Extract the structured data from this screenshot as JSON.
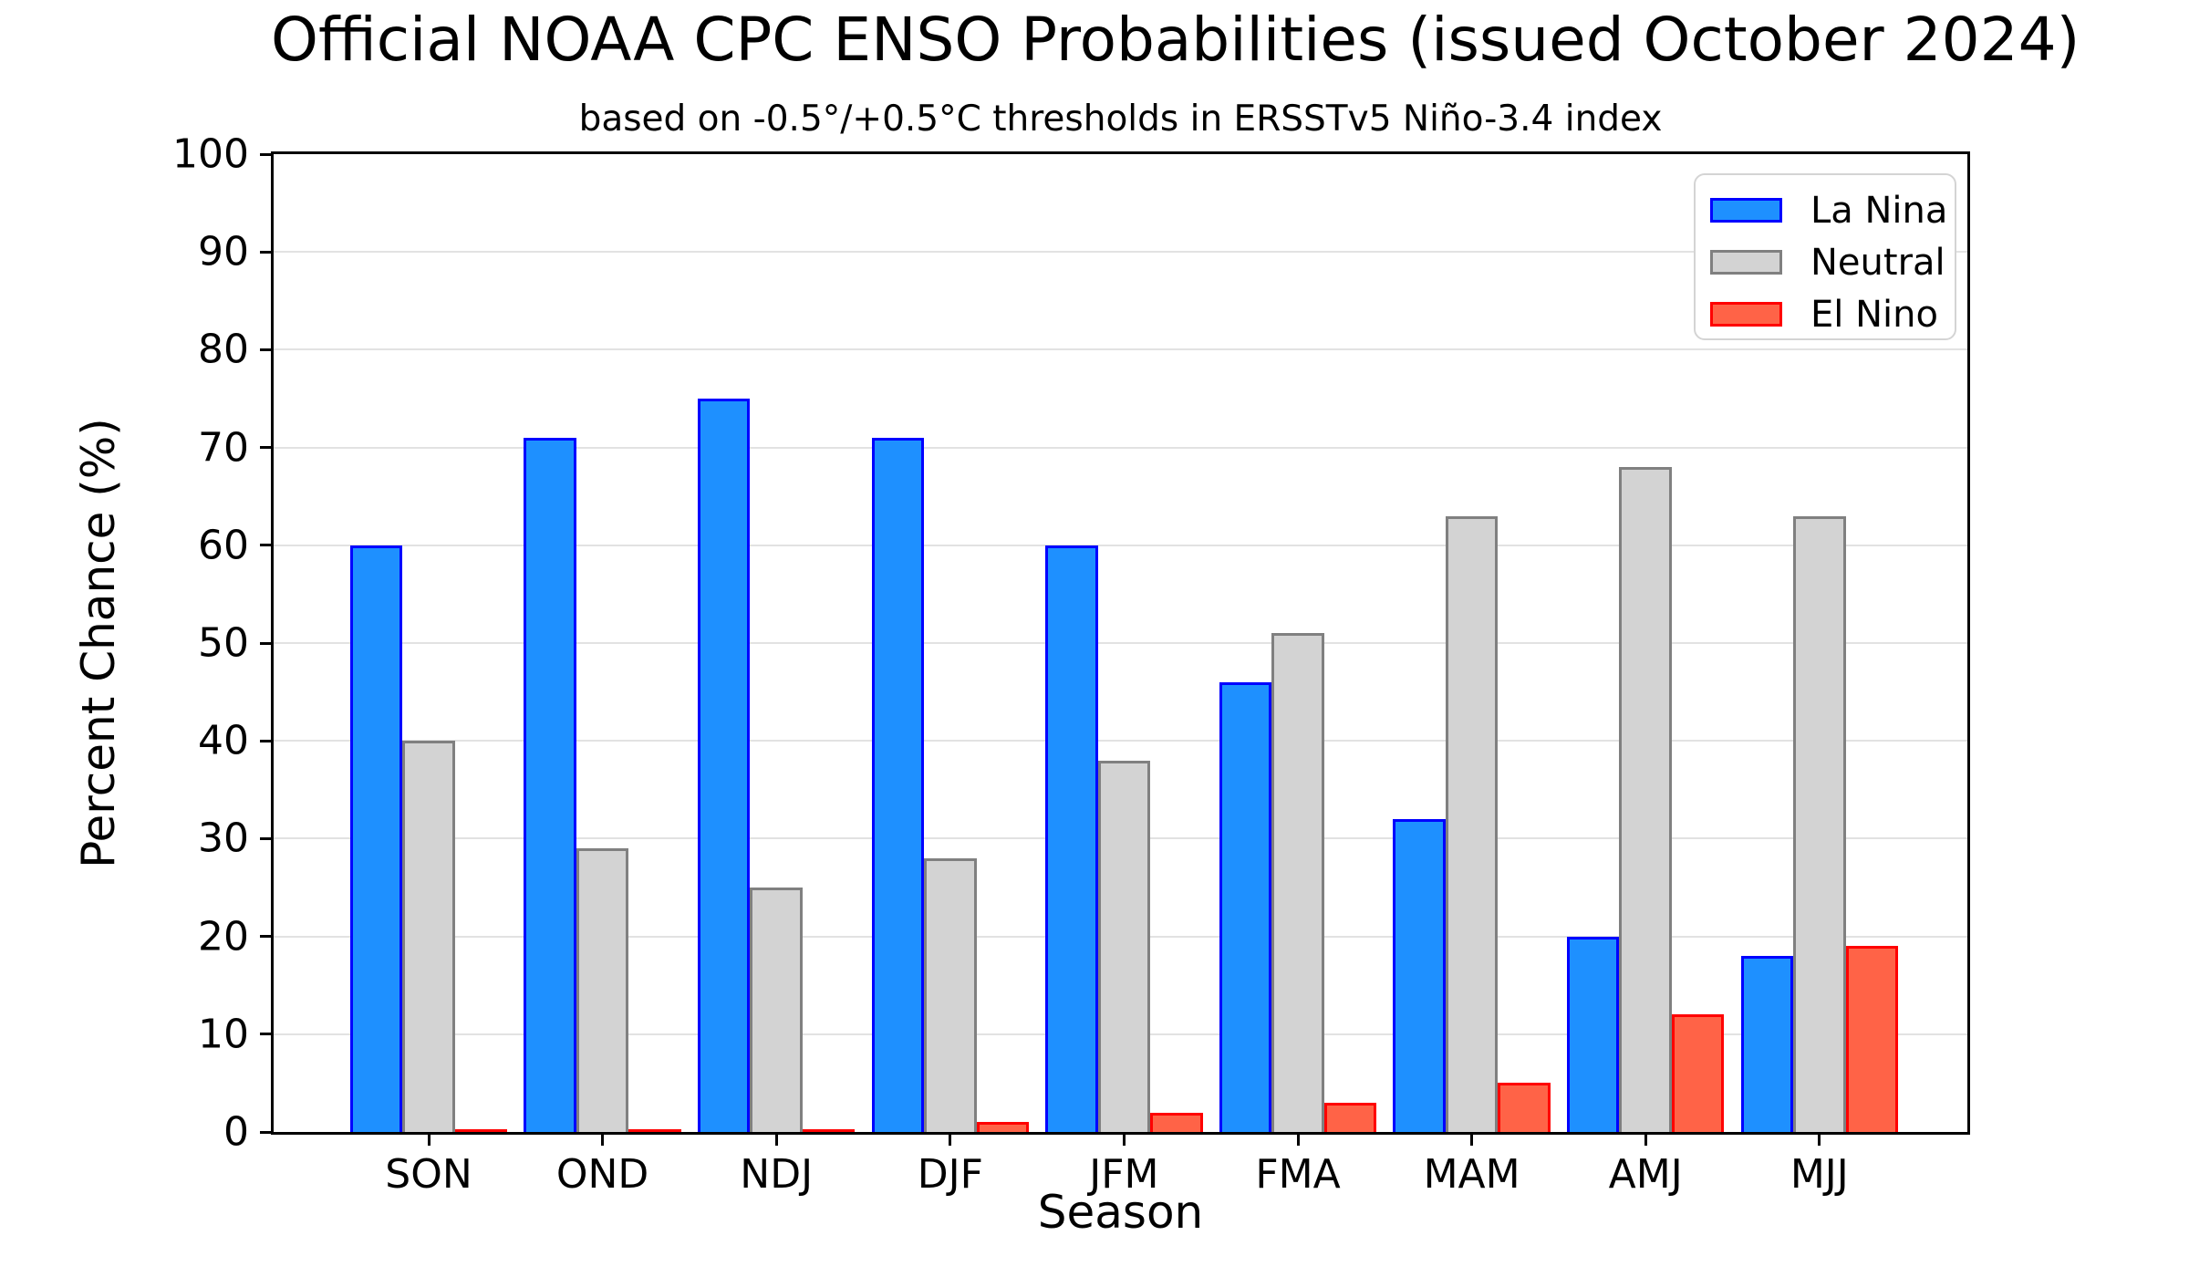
{
  "title": "Official NOAA CPC ENSO Probabilities (issued October 2024)",
  "subtitle": "based on -0.5°/+0.5°C thresholds in ERSSTv5 Niño-3.4 index",
  "chart_data": {
    "type": "bar",
    "title": "Official NOAA CPC ENSO Probabilities (issued October 2024)",
    "subtitle": "based on -0.5°/+0.5°C thresholds in ERSSTv5 Niño-3.4 index",
    "xlabel": "Season",
    "ylabel": "Percent Chance (%)",
    "categories": [
      "SON",
      "OND",
      "NDJ",
      "DJF",
      "JFM",
      "FMA",
      "MAM",
      "AMJ",
      "MJJ"
    ],
    "series": [
      {
        "name": "La Nina",
        "fill_color": "#1E90FF",
        "edge_color": "#0000FF",
        "values": [
          60,
          71,
          75,
          71,
          60,
          46,
          32,
          20,
          18
        ]
      },
      {
        "name": "Neutral",
        "fill_color": "#D3D3D3",
        "edge_color": "#808080",
        "values": [
          40,
          29,
          25,
          28,
          38,
          51,
          63,
          68,
          63
        ]
      },
      {
        "name": "El Nino",
        "fill_color": "#FF6347",
        "edge_color": "#FF0000",
        "values": [
          0,
          0,
          0,
          1,
          2,
          3,
          5,
          12,
          19
        ]
      }
    ],
    "ylim": [
      0,
      100
    ],
    "yticks": [
      0,
      10,
      20,
      30,
      40,
      50,
      60,
      70,
      80,
      90,
      100
    ],
    "grid": true,
    "legend_position": "upper right",
    "legend_entries": [
      "La Nina",
      "Neutral",
      "El Nino"
    ]
  }
}
